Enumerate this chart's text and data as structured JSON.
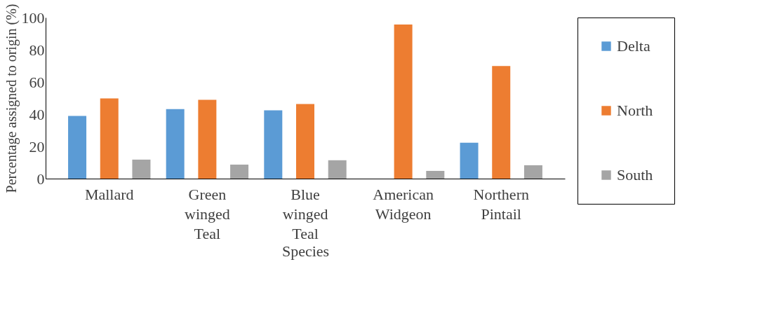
{
  "chart_data": {
    "type": "bar",
    "xlabel": "Species",
    "ylabel": "Percentage assigned to origin (%)",
    "categories": [
      "Mallard",
      "Green winged Teal",
      "Blue winged Teal",
      "American Widgeon",
      "Northern Pintail"
    ],
    "series": [
      {
        "name": "Delta",
        "color": "#5b9bd5",
        "values": [
          38.9,
          43.2,
          42.4,
          0,
          22.3
        ]
      },
      {
        "name": "North",
        "color": "#ed7d31",
        "values": [
          49.8,
          48.9,
          46.3,
          95.6,
          69.9
        ]
      },
      {
        "name": "South",
        "color": "#a5a5a5",
        "values": [
          11.8,
          8.7,
          11.4,
          4.8,
          8.3
        ]
      }
    ],
    "ylim": [
      0,
      100
    ],
    "yticks": [
      0,
      20,
      40,
      60,
      80,
      100
    ],
    "grid": false,
    "legend": "right"
  }
}
